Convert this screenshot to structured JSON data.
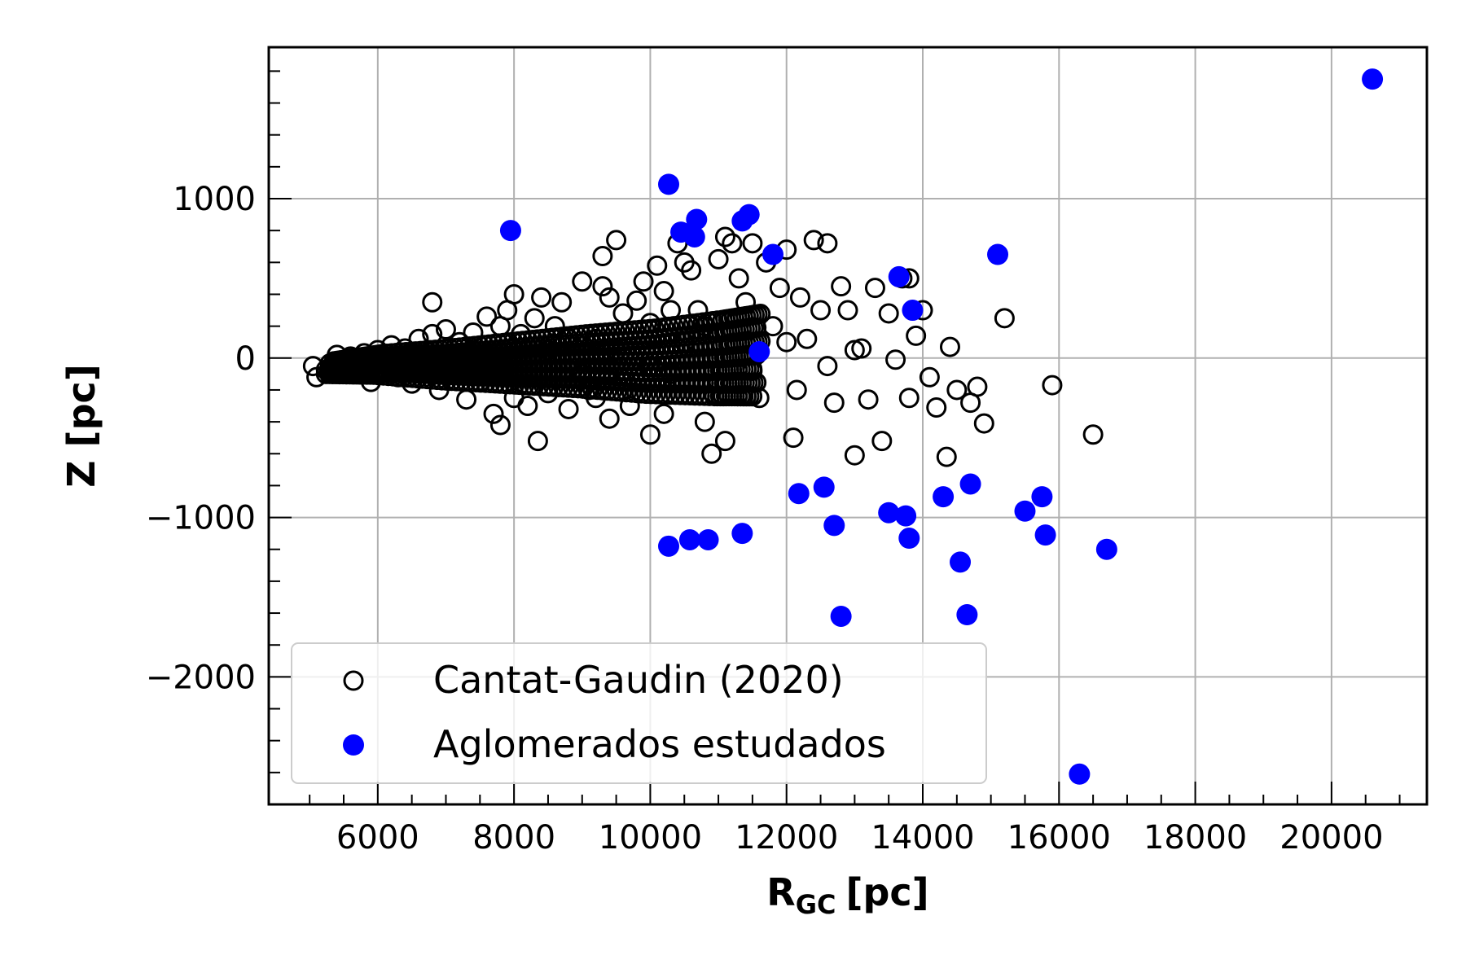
{
  "chart_data": {
    "type": "scatter",
    "title": "",
    "xlabel": "R",
    "xlabel_subscript": "GC",
    "xlabel_unit": "[pc]",
    "ylabel": "Z [pc]",
    "xlim": [
      4400,
      21400
    ],
    "ylim": [
      -2800,
      1950
    ],
    "xticks": [
      6000,
      8000,
      10000,
      12000,
      14000,
      16000,
      18000,
      20000
    ],
    "xtick_labels": [
      "6000",
      "8000",
      "10000",
      "12000",
      "14000",
      "16000",
      "18000",
      "20000"
    ],
    "yticks": [
      -2000,
      -1000,
      0,
      1000
    ],
    "ytick_labels": [
      "−2000",
      "−1000",
      "0",
      "1000"
    ],
    "grid": true,
    "legend_position": "lower-left",
    "series": [
      {
        "name": "Cantat-Gaudin (2020)",
        "marker": "open-circle",
        "color": "#000000",
        "points": [
          [
            5050,
            -50
          ],
          [
            5100,
            -120
          ],
          [
            5300,
            -60
          ],
          [
            5400,
            20
          ],
          [
            5500,
            -80
          ],
          [
            5600,
            10
          ],
          [
            5700,
            -100
          ],
          [
            5800,
            30
          ],
          [
            5900,
            -150
          ],
          [
            6000,
            50
          ],
          [
            6100,
            -30
          ],
          [
            6200,
            80
          ],
          [
            6300,
            -120
          ],
          [
            6400,
            60
          ],
          [
            6500,
            -160
          ],
          [
            6600,
            120
          ],
          [
            6700,
            -60
          ],
          [
            6800,
            350
          ],
          [
            6800,
            150
          ],
          [
            6900,
            -200
          ],
          [
            7000,
            180
          ],
          [
            7100,
            -100
          ],
          [
            7200,
            100
          ],
          [
            7300,
            -260
          ],
          [
            7400,
            160
          ],
          [
            7500,
            -150
          ],
          [
            7600,
            260
          ],
          [
            7700,
            -350
          ],
          [
            7800,
            -420
          ],
          [
            7800,
            200
          ],
          [
            7900,
            300
          ],
          [
            8000,
            400
          ],
          [
            8000,
            -250
          ],
          [
            8100,
            150
          ],
          [
            8200,
            -300
          ],
          [
            8300,
            250
          ],
          [
            8350,
            -520
          ],
          [
            8400,
            380
          ],
          [
            8500,
            -220
          ],
          [
            8600,
            200
          ],
          [
            8700,
            350
          ],
          [
            8800,
            -320
          ],
          [
            9000,
            480
          ],
          [
            9100,
            -200
          ],
          [
            9200,
            120
          ],
          [
            9300,
            450
          ],
          [
            9300,
            640
          ],
          [
            9400,
            380
          ],
          [
            9400,
            -380
          ],
          [
            9500,
            740
          ],
          [
            9600,
            280
          ],
          [
            9700,
            -300
          ],
          [
            9800,
            360
          ],
          [
            9900,
            480
          ],
          [
            10000,
            -480
          ],
          [
            10000,
            220
          ],
          [
            10100,
            580
          ],
          [
            10200,
            420
          ],
          [
            10200,
            -350
          ],
          [
            10300,
            300
          ],
          [
            10400,
            720
          ],
          [
            10500,
            600
          ],
          [
            10600,
            550
          ],
          [
            10700,
            300
          ],
          [
            10800,
            -400
          ],
          [
            10900,
            -600
          ],
          [
            11000,
            620
          ],
          [
            11100,
            760
          ],
          [
            11100,
            -520
          ],
          [
            11200,
            720
          ],
          [
            11300,
            500
          ],
          [
            11400,
            350
          ],
          [
            11500,
            720
          ],
          [
            11600,
            -250
          ],
          [
            11700,
            600
          ],
          [
            11800,
            200
          ],
          [
            11900,
            440
          ],
          [
            12000,
            680
          ],
          [
            12100,
            -500
          ],
          [
            12150,
            -200
          ],
          [
            12200,
            380
          ],
          [
            12300,
            120
          ],
          [
            12400,
            740
          ],
          [
            12500,
            300
          ],
          [
            12600,
            720
          ],
          [
            12700,
            -280
          ],
          [
            12800,
            450
          ],
          [
            12900,
            300
          ],
          [
            13000,
            -610
          ],
          [
            13100,
            60
          ],
          [
            13200,
            -260
          ],
          [
            13300,
            440
          ],
          [
            13400,
            -520
          ],
          [
            13500,
            280
          ],
          [
            13600,
            -10
          ],
          [
            13700,
            500
          ],
          [
            13800,
            500
          ],
          [
            13800,
            -250
          ],
          [
            13900,
            140
          ],
          [
            14000,
            300
          ],
          [
            14100,
            -120
          ],
          [
            14200,
            -310
          ],
          [
            14350,
            -620
          ],
          [
            14400,
            70
          ],
          [
            14500,
            -200
          ],
          [
            14700,
            -280
          ],
          [
            14800,
            -180
          ],
          [
            14900,
            -410
          ],
          [
            15200,
            250
          ],
          [
            15900,
            -170
          ],
          [
            16500,
            -480
          ],
          [
            9000,
            -100
          ],
          [
            9500,
            50
          ],
          [
            10000,
            -50
          ],
          [
            10500,
            100
          ],
          [
            11000,
            -150
          ],
          [
            8500,
            50
          ],
          [
            7500,
            -50
          ],
          [
            6500,
            30
          ],
          [
            9200,
            -250
          ],
          [
            10300,
            -100
          ],
          [
            11500,
            -80
          ],
          [
            12000,
            100
          ],
          [
            12600,
            -50
          ],
          [
            13000,
            50
          ],
          [
            8800,
            120
          ],
          [
            9600,
            -150
          ],
          [
            10800,
            200
          ]
        ],
        "dense_core": [
          [
            5300,
            -60
          ],
          [
            6000,
            -40
          ],
          [
            7000,
            -40
          ],
          [
            8000,
            -30
          ],
          [
            9000,
            -20
          ],
          [
            10000,
            -20
          ],
          [
            11000,
            0
          ],
          [
            11600,
            20
          ]
        ]
      },
      {
        "name": "Aglomerados estudados",
        "marker": "filled-circle",
        "color": "#0000ff",
        "points": [
          [
            7950,
            800
          ],
          [
            10270,
            1090
          ],
          [
            10450,
            790
          ],
          [
            10650,
            760
          ],
          [
            10680,
            870
          ],
          [
            11350,
            860
          ],
          [
            11450,
            900
          ],
          [
            11800,
            650
          ],
          [
            11600,
            40
          ],
          [
            13650,
            510
          ],
          [
            13850,
            300
          ],
          [
            15100,
            650
          ],
          [
            20600,
            1750
          ],
          [
            10270,
            -1180
          ],
          [
            10580,
            -1140
          ],
          [
            10850,
            -1140
          ],
          [
            11350,
            -1100
          ],
          [
            12180,
            -850
          ],
          [
            12550,
            -810
          ],
          [
            12700,
            -1050
          ],
          [
            12800,
            -1620
          ],
          [
            13500,
            -970
          ],
          [
            13750,
            -990
          ],
          [
            13800,
            -1130
          ],
          [
            14300,
            -870
          ],
          [
            14550,
            -1280
          ],
          [
            14650,
            -1610
          ],
          [
            14700,
            -790
          ],
          [
            15500,
            -960
          ],
          [
            15750,
            -870
          ],
          [
            15800,
            -1110
          ],
          [
            16700,
            -1200
          ],
          [
            16300,
            -2610
          ]
        ]
      }
    ]
  }
}
